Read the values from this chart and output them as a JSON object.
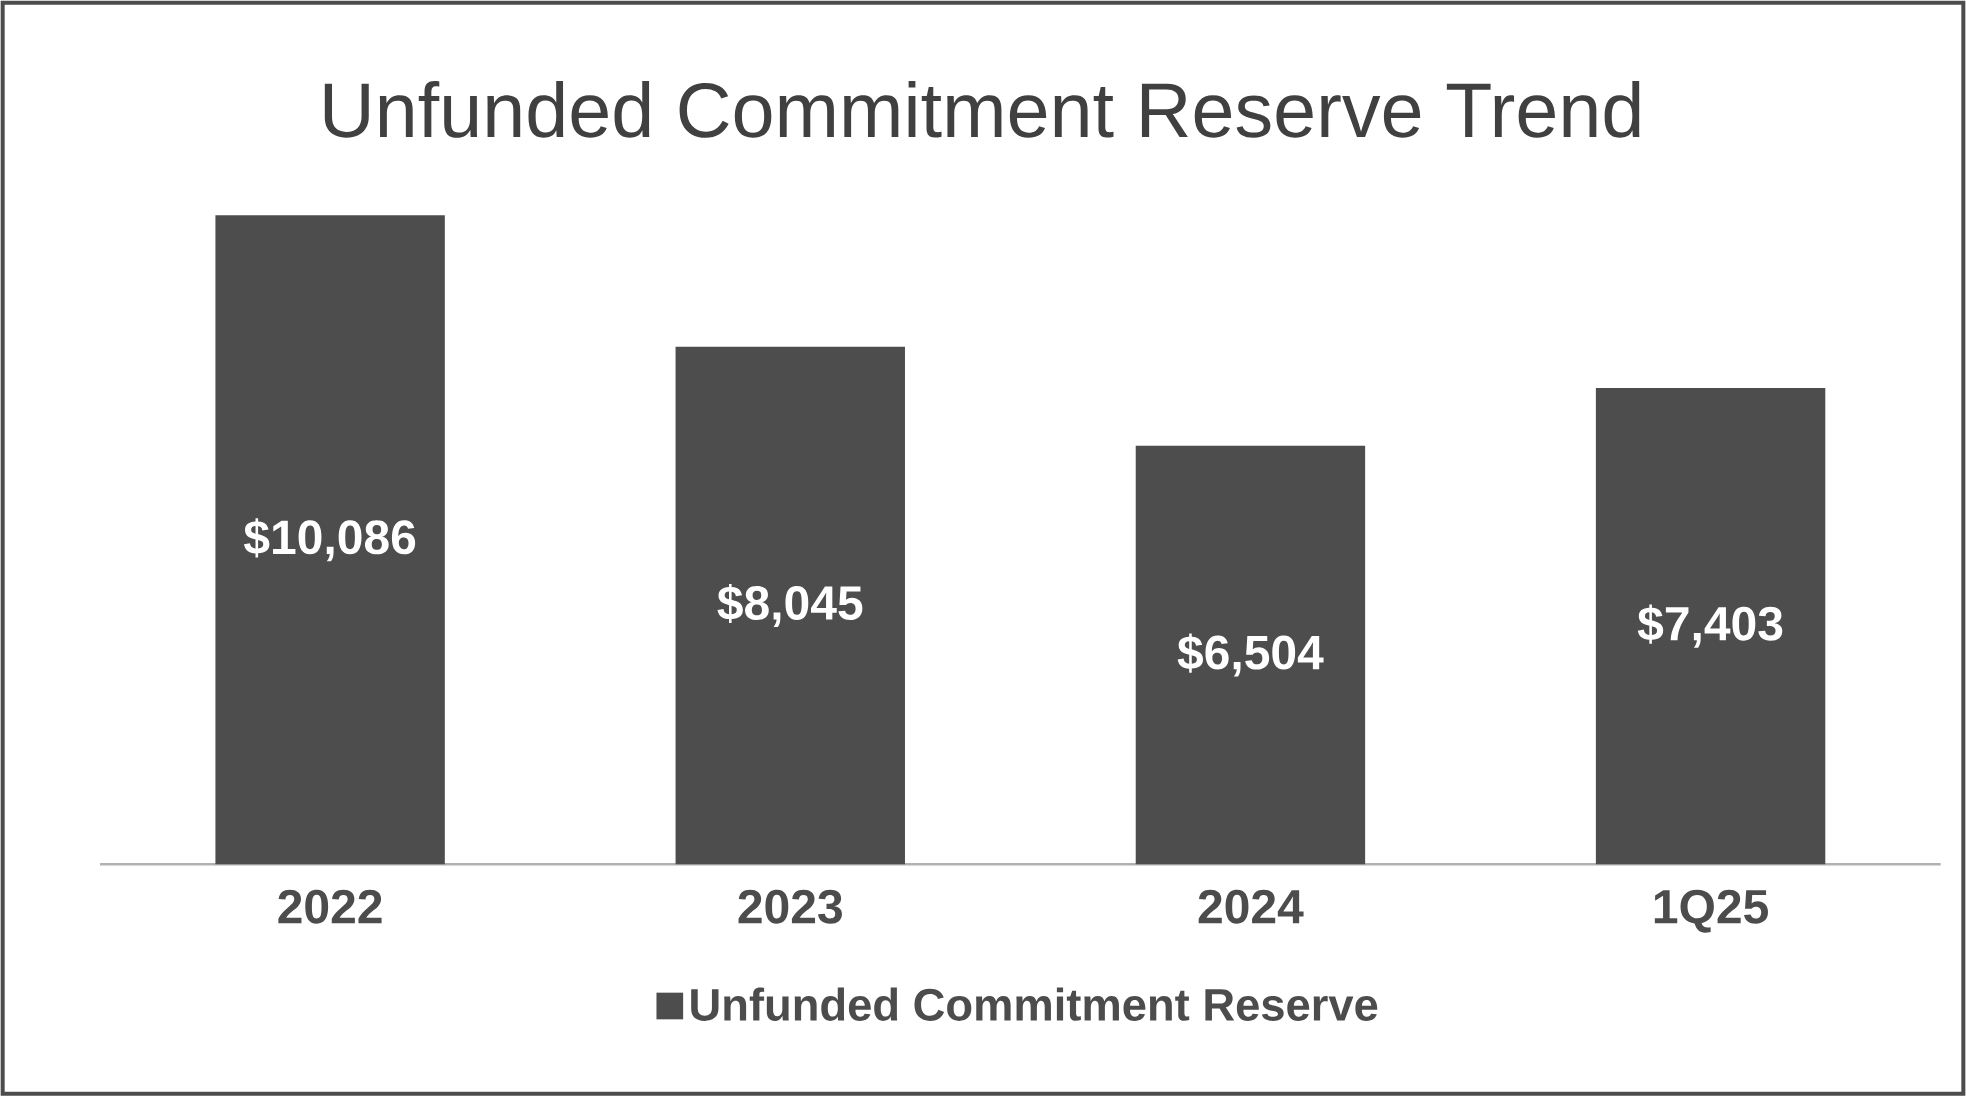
{
  "chart_data": {
    "type": "bar",
    "title": "Unfunded Commitment Reserve Trend",
    "categories": [
      "2022",
      "2023",
      "2024",
      "1Q25"
    ],
    "series": [
      {
        "name": "Unfunded Commitment Reserve",
        "color": "#4d4d4d",
        "values": [
          10086,
          8045,
          6504,
          7403
        ],
        "value_labels": [
          "$10,086",
          "$8,045",
          "$6,504",
          "$7,403"
        ]
      }
    ],
    "legend": "bottom"
  }
}
